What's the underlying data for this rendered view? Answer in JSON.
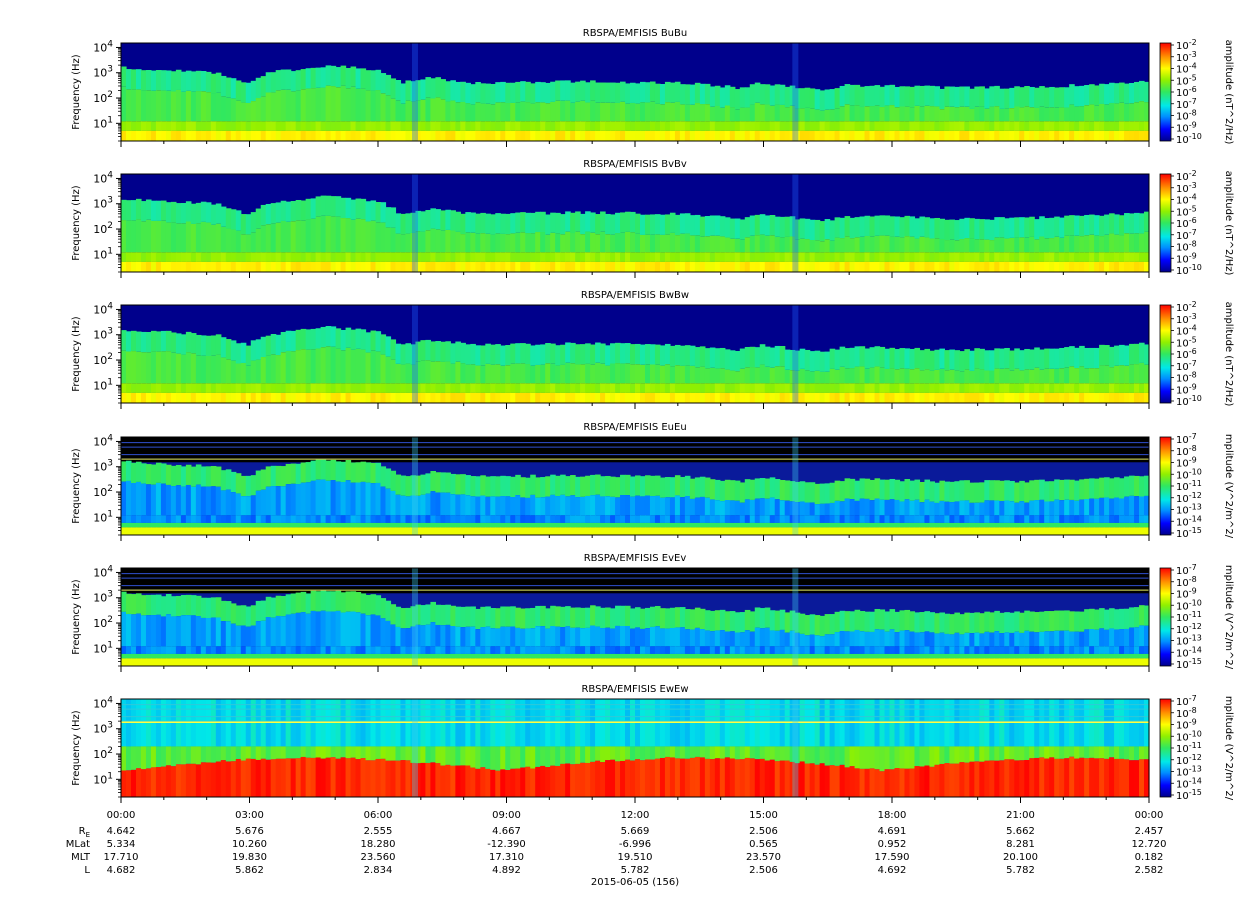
{
  "chart_data": [
    {
      "type": "heatmap",
      "title": "RBSPA/EMFISIS  BuBu",
      "ylabel": "Frequency (Hz)",
      "yscale": "log",
      "ylim": [
        2,
        15000
      ],
      "colorbar_label": "amplitude (nT^2/Hz)",
      "colorbar_ticks": [
        "10^-2",
        "10^-3",
        "10^-4",
        "10^-5",
        "10^-6",
        "10^-7",
        "10^-8",
        "10^-9",
        "10^-10"
      ],
      "kind": "B"
    },
    {
      "type": "heatmap",
      "title": "RBSPA/EMFISIS  BvBv",
      "ylabel": "Frequency (Hz)",
      "yscale": "log",
      "ylim": [
        2,
        15000
      ],
      "colorbar_label": "amplitude (nT^2/Hz)",
      "colorbar_ticks": [
        "10^-2",
        "10^-3",
        "10^-4",
        "10^-5",
        "10^-6",
        "10^-7",
        "10^-8",
        "10^-9",
        "10^-10"
      ],
      "kind": "B"
    },
    {
      "type": "heatmap",
      "title": "RBSPA/EMFISIS  BwBw",
      "ylabel": "Frequency (Hz)",
      "yscale": "log",
      "ylim": [
        2,
        15000
      ],
      "colorbar_label": "amplitude (nT^2/Hz)",
      "colorbar_ticks": [
        "10^-2",
        "10^-3",
        "10^-4",
        "10^-5",
        "10^-6",
        "10^-7",
        "10^-8",
        "10^-9",
        "10^-10"
      ],
      "kind": "B"
    },
    {
      "type": "heatmap",
      "title": "RBSPA/EMFISIS  EuEu",
      "ylabel": "Frequency (Hz)",
      "yscale": "log",
      "ylim": [
        2,
        15000
      ],
      "colorbar_label": "mplitude (V^2/m^2/",
      "colorbar_ticks": [
        "10^-7",
        "10^-8",
        "10^-9",
        "10^-10",
        "10^-11",
        "10^-12",
        "10^-13",
        "10^-14",
        "10^-15"
      ],
      "kind": "E"
    },
    {
      "type": "heatmap",
      "title": "RBSPA/EMFISIS  EvEv",
      "ylabel": "Frequency (Hz)",
      "yscale": "log",
      "ylim": [
        2,
        15000
      ],
      "colorbar_label": "mplitude (V^2/m^2/",
      "colorbar_ticks": [
        "10^-7",
        "10^-8",
        "10^-9",
        "10^-10",
        "10^-11",
        "10^-12",
        "10^-13",
        "10^-14",
        "10^-15"
      ],
      "kind": "E"
    },
    {
      "type": "heatmap",
      "title": "RBSPA/EMFISIS  EwEw",
      "ylabel": "Frequency (Hz)",
      "yscale": "log",
      "ylim": [
        2,
        15000
      ],
      "colorbar_label": "mplitude (V^2/m^2/",
      "colorbar_ticks": [
        "10^-7",
        "10^-8",
        "10^-9",
        "10^-10",
        "10^-11",
        "10^-12",
        "10^-13",
        "10^-14",
        "10^-15"
      ],
      "kind": "Ew"
    }
  ],
  "y_ticks": [
    {
      "base": "10",
      "exp": "4"
    },
    {
      "base": "10",
      "exp": "3"
    },
    {
      "base": "10",
      "exp": "2"
    },
    {
      "base": "10",
      "exp": "1"
    }
  ],
  "x_axis": {
    "times": [
      "00:00",
      "03:00",
      "06:00",
      "09:00",
      "12:00",
      "15:00",
      "18:00",
      "21:00",
      "00:00"
    ],
    "rows": [
      {
        "label": "RE",
        "values": [
          "4.642",
          "5.676",
          "2.555",
          "4.667",
          "5.669",
          "2.506",
          "4.691",
          "5.662",
          "2.457"
        ]
      },
      {
        "label": "MLat",
        "values": [
          "5.334",
          "10.260",
          "18.280",
          "-12.390",
          "-6.996",
          "0.565",
          "0.952",
          "8.281",
          "12.720"
        ]
      },
      {
        "label": "MLT",
        "values": [
          "17.710",
          "19.830",
          "23.560",
          "17.310",
          "19.510",
          "23.570",
          "17.590",
          "20.100",
          "0.182"
        ]
      },
      {
        "label": "L",
        "values": [
          "4.682",
          "5.862",
          "2.834",
          "4.892",
          "5.782",
          "2.506",
          "4.692",
          "5.782",
          "2.582"
        ]
      }
    ],
    "date": "2015-06-05 (156)"
  },
  "colors": {
    "background_B": "#00008c",
    "background_E": "#000000"
  }
}
